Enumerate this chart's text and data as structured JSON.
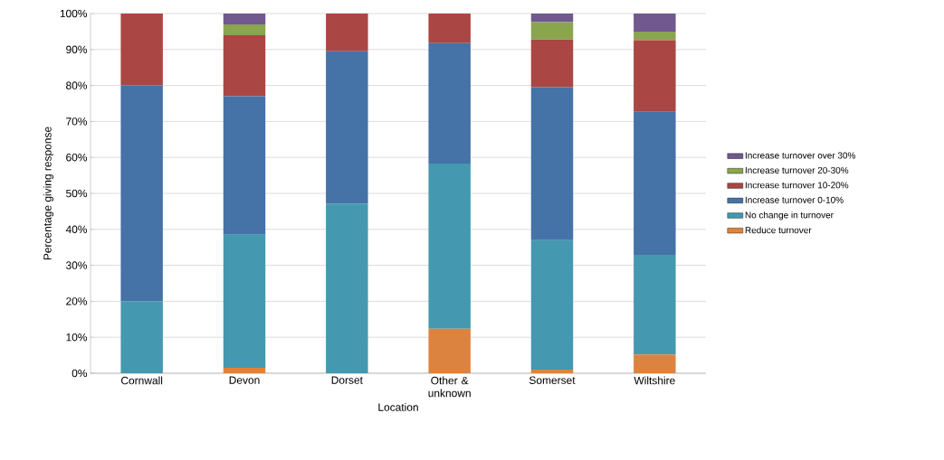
{
  "chart_data": {
    "type": "bar",
    "stacked": true,
    "xlabel": "Location",
    "ylabel": "Percentage giving response",
    "categories": [
      "Cornwall",
      "Devon",
      "Dorset",
      "Other & unknown",
      "Somerset",
      "Wiltshire"
    ],
    "series": [
      {
        "name": "Reduce turnover",
        "color": "#dd8340",
        "values": [
          0,
          1.5,
          0,
          12.4,
          1,
          5.2
        ]
      },
      {
        "name": "No change in turnover",
        "color": "#4499b0",
        "values": [
          20,
          37,
          47.2,
          45.9,
          36,
          27.7
        ]
      },
      {
        "name": "Increase turnover 0-10%",
        "color": "#4572a7",
        "values": [
          60,
          38.5,
          42.3,
          33.5,
          42.5,
          39.8
        ]
      },
      {
        "name": "Increase turnover 10-20%",
        "color": "#aa4643",
        "values": [
          20,
          17,
          10.5,
          8.2,
          13.3,
          19.9
        ]
      },
      {
        "name": "Increase turnover 20-30%",
        "color": "#89a54e",
        "values": [
          0,
          3,
          0,
          0,
          4.8,
          2.4
        ]
      },
      {
        "name": "Increase turnover over 30%",
        "color": "#71588f",
        "values": [
          0,
          3,
          0,
          0,
          2.4,
          5
        ]
      }
    ],
    "ylim": [
      0,
      100
    ],
    "yticks": [
      {
        "value": 0,
        "label": "0%"
      },
      {
        "value": 10,
        "label": "10%"
      },
      {
        "value": 20,
        "label": "20%"
      },
      {
        "value": 30,
        "label": "30%"
      },
      {
        "value": 40,
        "label": "40%"
      },
      {
        "value": 50,
        "label": "50%"
      },
      {
        "value": 60,
        "label": "60%"
      },
      {
        "value": 70,
        "label": "70%"
      },
      {
        "value": 80,
        "label": "80%"
      },
      {
        "value": 90,
        "label": "90%"
      },
      {
        "value": 100,
        "label": "100%"
      }
    ],
    "grid": "y",
    "legend": "right"
  }
}
